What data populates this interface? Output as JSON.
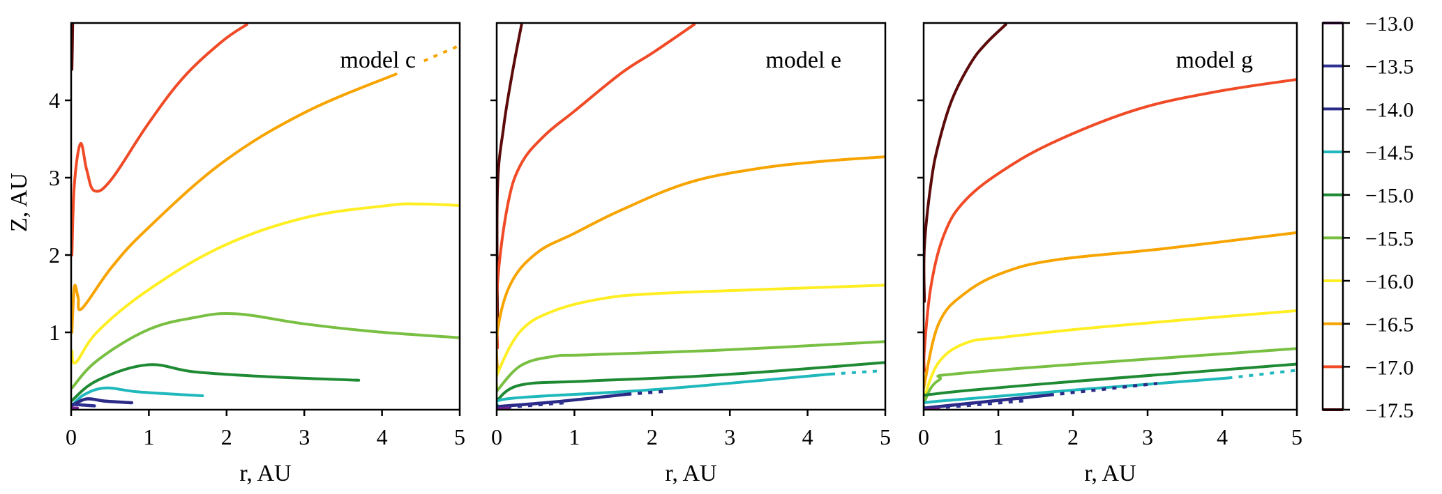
{
  "chart_data": {
    "type": "line",
    "colorbar": {
      "ticks": [
        "−13.0",
        "−13.5",
        "−14.0",
        "−14.5",
        "−15.0",
        "−15.5",
        "−16.0",
        "−16.5",
        "−17.0",
        "−17.5"
      ],
      "levels": [
        -13.0,
        -13.5,
        -14.0,
        -14.5,
        -15.0,
        -15.5,
        -16.0,
        -16.5,
        -17.0,
        -17.5
      ],
      "range": [
        -17.5,
        -13.0
      ]
    },
    "colormap": {
      "-13.0": "#7a1f8f",
      "-13.5": "#2e3192",
      "-14.0": "#2b2a86",
      "-14.5": "#1fb8bc",
      "-15.0": "#1f8a34",
      "-15.5": "#78bf42",
      "-16.0": "#ffee22",
      "-16.5": "#f7a400",
      "-17.0": "#f04a26",
      "-17.5": "#5c0a0a"
    },
    "panels": [
      {
        "label": "model c",
        "xlabel": "r, AU",
        "ylabel": "Z, AU",
        "xlim": [
          0,
          5
        ],
        "ylim": [
          0,
          5
        ],
        "xticks": [
          "0",
          "1",
          "2",
          "3",
          "4",
          "5"
        ],
        "yticks": [
          "1",
          "2",
          "3",
          "4"
        ],
        "contours": [
          {
            "level": -17.5,
            "points": [
              [
                0.01,
                4.4
              ],
              [
                0.015,
                4.7
              ],
              [
                0.02,
                5.0
              ]
            ]
          },
          {
            "level": -17.0,
            "points": [
              [
                0.01,
                2.0
              ],
              [
                0.04,
                2.9
              ],
              [
                0.12,
                3.44
              ],
              [
                0.2,
                3.1
              ],
              [
                0.3,
                2.83
              ],
              [
                0.52,
                2.98
              ],
              [
                0.98,
                3.68
              ],
              [
                1.44,
                4.29
              ],
              [
                1.94,
                4.76
              ],
              [
                2.26,
                4.98
              ]
            ]
          },
          {
            "level": -16.5,
            "points": [
              [
                0.01,
                1.0
              ],
              [
                0.03,
                1.45
              ],
              [
                0.05,
                1.61
              ],
              [
                0.09,
                1.45
              ],
              [
                0.14,
                1.31
              ],
              [
                0.52,
                1.84
              ],
              [
                0.98,
                2.34
              ],
              [
                1.94,
                3.19
              ],
              [
                3.0,
                3.84
              ],
              [
                4.18,
                4.34
              ]
            ],
            "dotted_points": [
              [
                4.54,
                4.51
              ],
              [
                5.0,
                4.71
              ]
            ]
          },
          {
            "level": -16.0,
            "points": [
              [
                0.01,
                0.76
              ],
              [
                0.06,
                0.61
              ],
              [
                0.34,
                1.01
              ],
              [
                0.98,
                1.54
              ],
              [
                1.94,
                2.11
              ],
              [
                3.0,
                2.48
              ],
              [
                4.07,
                2.64
              ],
              [
                4.5,
                2.66
              ],
              [
                5.0,
                2.64
              ]
            ]
          },
          {
            "level": -15.5,
            "points": [
              [
                0.01,
                0.28
              ],
              [
                0.34,
                0.64
              ],
              [
                0.98,
                1.03
              ],
              [
                1.58,
                1.19
              ],
              [
                2.12,
                1.24
              ],
              [
                3.0,
                1.11
              ],
              [
                3.9,
                1.01
              ],
              [
                5.0,
                0.93
              ]
            ]
          },
          {
            "level": -15.0,
            "points": [
              [
                0.0,
                0.11
              ],
              [
                0.34,
                0.38
              ],
              [
                0.98,
                0.58
              ],
              [
                1.58,
                0.49
              ],
              [
                2.47,
                0.43
              ],
              [
                3.7,
                0.38
              ]
            ]
          },
          {
            "level": -14.5,
            "points": [
              [
                0.0,
                0.04
              ],
              [
                0.16,
                0.19
              ],
              [
                0.44,
                0.28
              ],
              [
                0.87,
                0.23
              ],
              [
                1.69,
                0.18
              ]
            ]
          },
          {
            "level": -14.0,
            "points": [
              [
                0.02,
                0.06
              ],
              [
                0.2,
                0.14
              ],
              [
                0.44,
                0.11
              ],
              [
                0.78,
                0.09
              ]
            ]
          },
          {
            "level": -13.5,
            "points": [
              [
                0.02,
                0.07
              ],
              [
                0.3,
                0.05
              ]
            ]
          },
          {
            "level": -13.0,
            "points": [
              [
                0.02,
                0.02
              ],
              [
                0.08,
                0.02
              ]
            ]
          }
        ]
      },
      {
        "label": "model e",
        "xlabel": "r, AU",
        "xlim": [
          0,
          5
        ],
        "ylim": [
          0,
          5
        ],
        "xticks": [
          "0",
          "1",
          "2",
          "3",
          "4",
          "5"
        ],
        "contours": [
          {
            "level": -17.5,
            "points": [
              [
                0.01,
                1.2
              ],
              [
                0.01,
                2.85
              ],
              [
                0.09,
                3.66
              ],
              [
                0.2,
                4.35
              ],
              [
                0.32,
                4.98
              ]
            ]
          },
          {
            "level": -17.0,
            "points": [
              [
                0.01,
                0.8
              ],
              [
                0.01,
                1.63
              ],
              [
                0.14,
                2.64
              ],
              [
                0.31,
                3.17
              ],
              [
                0.61,
                3.54
              ],
              [
                1.0,
                3.86
              ],
              [
                1.6,
                4.35
              ],
              [
                2.03,
                4.63
              ],
              [
                2.54,
                4.98
              ]
            ]
          },
          {
            "level": -16.5,
            "points": [
              [
                0.01,
                0.5
              ],
              [
                0.01,
                1.02
              ],
              [
                0.18,
                1.63
              ],
              [
                0.52,
                2.03
              ],
              [
                1.0,
                2.28
              ],
              [
                1.6,
                2.58
              ],
              [
                2.45,
                2.93
              ],
              [
                3.31,
                3.11
              ],
              [
                4.17,
                3.21
              ],
              [
                5.0,
                3.27
              ]
            ]
          },
          {
            "level": -16.0,
            "points": [
              [
                0.0,
                0.3
              ],
              [
                0.02,
                0.49
              ],
              [
                0.31,
                1.02
              ],
              [
                0.74,
                1.28
              ],
              [
                1.38,
                1.44
              ],
              [
                2.03,
                1.5
              ],
              [
                3.31,
                1.55
              ],
              [
                5.0,
                1.61
              ]
            ]
          },
          {
            "level": -15.5,
            "points": [
              [
                0.0,
                0.24
              ],
              [
                0.31,
                0.57
              ],
              [
                0.74,
                0.69
              ],
              [
                1.17,
                0.71
              ],
              [
                2.88,
                0.77
              ],
              [
                5.0,
                0.88
              ]
            ]
          },
          {
            "level": -15.0,
            "points": [
              [
                0.0,
                0.12
              ],
              [
                0.31,
                0.32
              ],
              [
                1.17,
                0.37
              ],
              [
                2.88,
                0.45
              ],
              [
                5.0,
                0.61
              ]
            ]
          },
          {
            "level": -14.5,
            "points": [
              [
                0.0,
                0.06
              ],
              [
                0.22,
                0.15
              ],
              [
                2.03,
                0.26
              ],
              [
                4.3,
                0.46
              ]
            ],
            "dotted_points": [
              [
                4.3,
                0.46
              ],
              [
                4.9,
                0.5
              ]
            ]
          },
          {
            "level": -14.0,
            "points": [
              [
                0.0,
                0.04
              ],
              [
                0.74,
                0.1
              ],
              [
                1.68,
                0.2
              ]
            ],
            "dotted_points": [
              [
                1.68,
                0.2
              ],
              [
                2.2,
                0.24
              ]
            ]
          },
          {
            "level": -13.5,
            "dotted_points": [
              [
                0.0,
                0.02
              ],
              [
                0.87,
                0.09
              ]
            ]
          },
          {
            "level": -13.0,
            "points": [
              [
                0.02,
                0.01
              ],
              [
                0.15,
                0.02
              ]
            ]
          }
        ]
      },
      {
        "label": "model g",
        "xlabel": "r, AU",
        "xlim": [
          0,
          5
        ],
        "ylim": [
          0,
          5
        ],
        "xticks": [
          "0",
          "1",
          "2",
          "3",
          "4",
          "5"
        ],
        "contours": [
          {
            "level": -17.5,
            "points": [
              [
                0.01,
                1.4
              ],
              [
                0.01,
                2.11
              ],
              [
                0.1,
                2.94
              ],
              [
                0.2,
                3.44
              ],
              [
                0.38,
                4.01
              ],
              [
                0.63,
                4.48
              ],
              [
                0.84,
                4.74
              ],
              [
                1.1,
                4.98
              ]
            ]
          },
          {
            "level": -17.0,
            "points": [
              [
                0.01,
                0.5
              ],
              [
                0.01,
                0.78
              ],
              [
                0.1,
                1.61
              ],
              [
                0.28,
                2.28
              ],
              [
                0.56,
                2.71
              ],
              [
                1.09,
                3.11
              ],
              [
                1.79,
                3.48
              ],
              [
                2.85,
                3.88
              ],
              [
                3.91,
                4.11
              ],
              [
                5.0,
                4.27
              ]
            ]
          },
          {
            "level": -16.5,
            "points": [
              [
                0.0,
                0.28
              ],
              [
                0.2,
                1.11
              ],
              [
                0.56,
                1.51
              ],
              [
                1.09,
                1.78
              ],
              [
                1.79,
                1.94
              ],
              [
                3.2,
                2.08
              ],
              [
                5.0,
                2.29
              ]
            ]
          },
          {
            "level": -16.0,
            "points": [
              [
                0.0,
                0.14
              ],
              [
                0.2,
                0.61
              ],
              [
                0.56,
                0.86
              ],
              [
                1.09,
                0.94
              ],
              [
                2.5,
                1.08
              ],
              [
                5.0,
                1.28
              ]
            ]
          },
          {
            "level": -15.5,
            "points": [
              [
                0.0,
                0.08
              ],
              [
                0.2,
                0.38
              ],
              [
                0.73,
                0.49
              ],
              [
                5.0,
                0.79
              ]
            ]
          },
          {
            "level": -15.0,
            "points": [
              [
                0.0,
                0.04
              ],
              [
                0.2,
                0.21
              ],
              [
                5.0,
                0.59
              ]
            ]
          },
          {
            "level": -14.5,
            "points": [
              [
                0.0,
                0.03
              ],
              [
                0.2,
                0.11
              ],
              [
                4.08,
                0.41
              ]
            ],
            "dotted_points": [
              [
                4.08,
                0.41
              ],
              [
                5.0,
                0.51
              ]
            ]
          },
          {
            "level": -14.0,
            "points": [
              [
                0.0,
                0.02
              ],
              [
                1.69,
                0.19
              ]
            ],
            "dotted_points": [
              [
                1.69,
                0.19
              ],
              [
                3.13,
                0.34
              ]
            ]
          },
          {
            "level": -13.5,
            "dotted_points": [
              [
                0.02,
                0.01
              ],
              [
                1.4,
                0.12
              ]
            ]
          },
          {
            "level": -13.0,
            "points": [
              [
                0.02,
                0.0
              ],
              [
                0.2,
                0.01
              ]
            ]
          }
        ]
      }
    ]
  }
}
